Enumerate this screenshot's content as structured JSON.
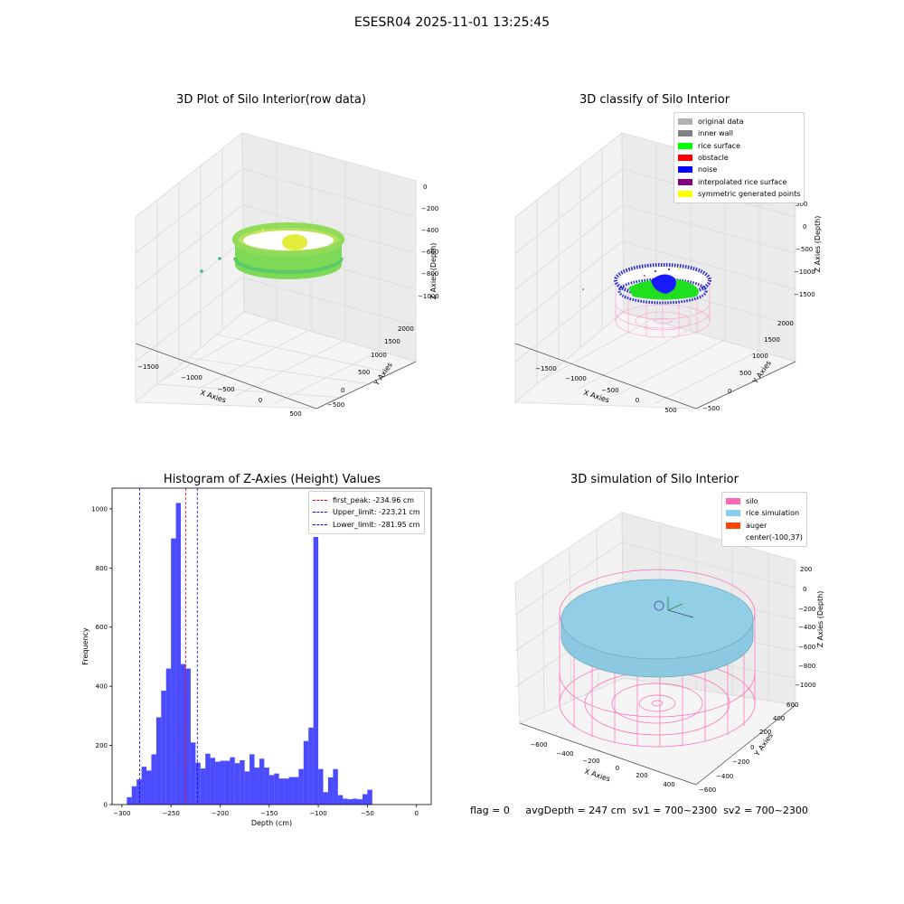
{
  "suptitle": "ESESR04 2025-11-01 13:25:45",
  "panel1": {
    "title": "3D Plot of Silo Interior(row data)",
    "xlabel": "X Axies",
    "ylabel": "Y Axies",
    "zlabel": "Z Axies (Depth)",
    "xticks": [
      "−1500",
      "−1000",
      "−500",
      "0",
      "500"
    ],
    "yticks": [
      "−500",
      "0",
      "500",
      "1000",
      "1500",
      "2000"
    ],
    "zticks": [
      "0",
      "−200",
      "−400",
      "−600",
      "−800",
      "−1000"
    ]
  },
  "panel2": {
    "title": "3D classify of Silo Interior",
    "xlabel": "X Axies",
    "ylabel": "Y Axies",
    "zlabel": "Z Axies (Depth)",
    "xticks": [
      "−1500",
      "−1000",
      "−500",
      "0",
      "500"
    ],
    "yticks": [
      "−500",
      "0",
      "500",
      "1000",
      "1500",
      "2000"
    ],
    "zticks": [
      "500",
      "0",
      "−500",
      "−1000",
      "−1500"
    ],
    "legend": [
      {
        "label": "original data",
        "color": "#b0b0b0"
      },
      {
        "label": "inner wall",
        "color": "#808080"
      },
      {
        "label": "rice surface",
        "color": "#00ff00"
      },
      {
        "label": "obstacle",
        "color": "#ff0000"
      },
      {
        "label": "noise",
        "color": "#0000ff"
      },
      {
        "label": "interpolated rice surface",
        "color": "#800080"
      },
      {
        "label": "symmetric generated points",
        "color": "#ffff00"
      }
    ]
  },
  "panel4": {
    "title": "3D simulation of Silo Interior",
    "xlabel": "X Axies",
    "ylabel": "Y Axies",
    "zlabel": "Z Axies (Depth)",
    "xticks": [
      "−600",
      "−400",
      "−200",
      "0",
      "200",
      "400"
    ],
    "yticks": [
      "−600",
      "−400",
      "−200",
      "0",
      "200",
      "400",
      "600"
    ],
    "zticks": [
      "200",
      "0",
      "−200",
      "−400",
      "−600",
      "−800",
      "−1000"
    ],
    "legend": [
      {
        "label": "silo",
        "color": "#ff69b4"
      },
      {
        "label": "rice simulation",
        "color": "#87ceeb"
      },
      {
        "label": "auger",
        "color": "#ff4500"
      },
      {
        "label": "center(-100,37)",
        "color": ""
      }
    ]
  },
  "footer": {
    "flag": "flag = 0",
    "stats": "avgDepth = 247 cm  sv1 = 700~2300  sv2 = 700~2300"
  },
  "chart_data": [
    {
      "type": "histogram",
      "title": "Histogram of Z-Axies (Height) Values",
      "xlabel": "Depth (cm)",
      "ylabel": "Frequency",
      "xlim": [
        -310,
        15
      ],
      "ylim": [
        0,
        1070
      ],
      "xticks": [
        -300,
        -250,
        -200,
        -150,
        -100,
        -50,
        0
      ],
      "yticks": [
        0,
        200,
        400,
        600,
        800,
        1000
      ],
      "bar_color": "#0000ff",
      "bin_start": -295,
      "bin_width": 5,
      "values": [
        25,
        62,
        85,
        128,
        115,
        170,
        295,
        385,
        460,
        900,
        1020,
        475,
        460,
        210,
        142,
        122,
        172,
        158,
        145,
        148,
        148,
        160,
        140,
        150,
        112,
        170,
        125,
        155,
        125,
        100,
        105,
        88,
        88,
        93,
        93,
        120,
        215,
        260,
        905,
        120,
        42,
        92,
        120,
        32,
        20,
        18,
        20,
        18,
        35,
        50
      ],
      "vlines": [
        {
          "label": "first_peak: -234.96 cm",
          "x": -234.96,
          "color": "#ff0000"
        },
        {
          "label": "Upper_limit: -223.21 cm",
          "x": -223.21,
          "color": "#0000ff"
        },
        {
          "label": "Lower_limit: -281.95 cm",
          "x": -281.95,
          "color": "#0000ff"
        }
      ],
      "legend_position": "upper right"
    }
  ]
}
